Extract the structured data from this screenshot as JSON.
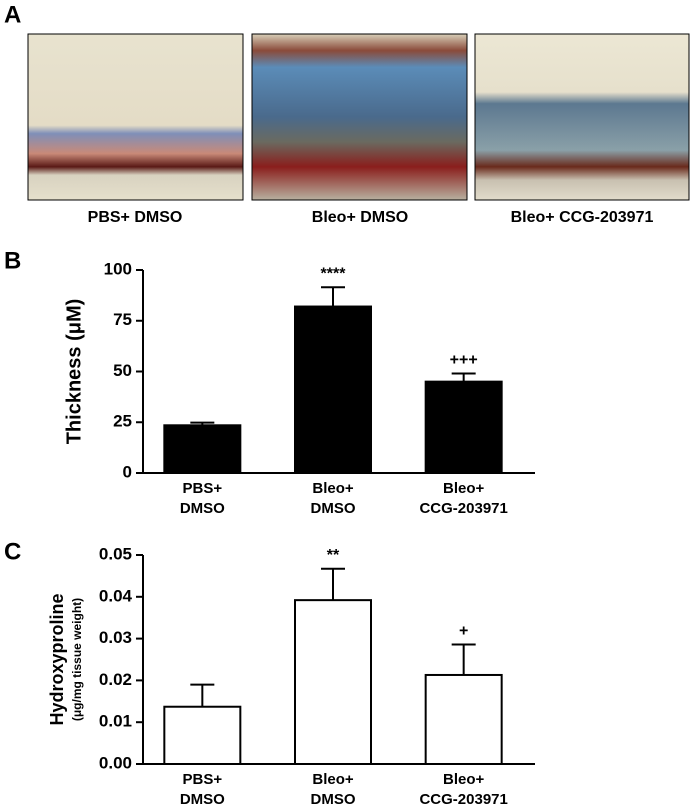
{
  "panel_labels": [
    "A",
    "B",
    "C"
  ],
  "images": [
    {
      "caption": "PBS+ DMSO"
    },
    {
      "caption": "Bleo+ DMSO"
    },
    {
      "caption": "Bleo+ CCG-203971"
    }
  ],
  "chart_data": [
    {
      "type": "bar",
      "y_label": "Thickness (μM)",
      "categories": [
        [
          "PBS+",
          "DMSO"
        ],
        [
          "Bleo+",
          "DMSO"
        ],
        [
          "Bleo+",
          "CCG-203971"
        ]
      ],
      "values": [
        23.5,
        82,
        45
      ],
      "errors": [
        1.3,
        9.5,
        4
      ],
      "significance": [
        null,
        "****",
        "+++"
      ],
      "color": "#000000",
      "edge_color": "#000000",
      "ylim": [
        0,
        100
      ],
      "yticks": [
        0,
        25,
        50,
        75,
        100
      ]
    },
    {
      "type": "bar",
      "y_label": "Hydroxyproline",
      "y_sublabel": "(μg/mg tissue weight)",
      "categories": [
        [
          "PBS+",
          "DMSO"
        ],
        [
          "Bleo+",
          "DMSO"
        ],
        [
          "Bleo+",
          "CCG-203971"
        ]
      ],
      "values": [
        0.0137,
        0.0392,
        0.0213
      ],
      "errors": [
        0.0053,
        0.0075,
        0.0073
      ],
      "significance": [
        null,
        "**",
        "+"
      ],
      "color": "#ffffff",
      "edge_color": "#000000",
      "ylim": [
        0,
        0.05
      ],
      "yticks": [
        {
          "value": 0,
          "label": "0.00"
        },
        0.01,
        0.02,
        0.03,
        0.04,
        0.05
      ]
    }
  ]
}
